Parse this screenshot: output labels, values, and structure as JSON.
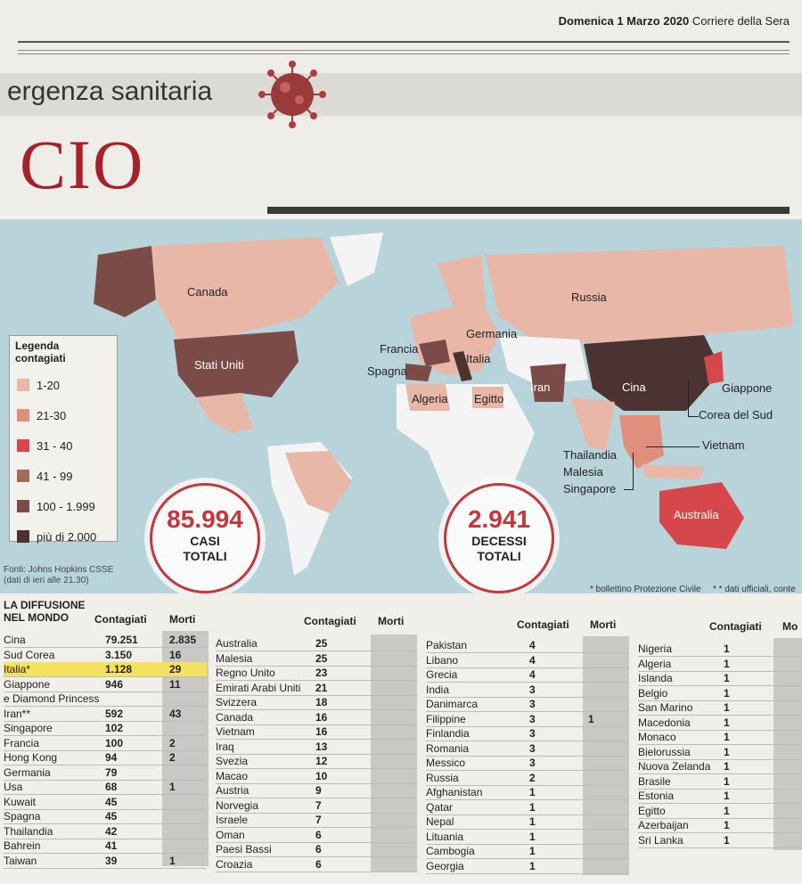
{
  "header": {
    "date": "Domenica 1 Marzo 2020",
    "paper": "Corriere della Sera",
    "section": "ergenza sanitaria",
    "big_title": "CIO"
  },
  "map": {
    "legend_title": "Legenda contagiati",
    "legend": [
      {
        "label": "1-20",
        "color": "#e9b7a8"
      },
      {
        "label": "21-30",
        "color": "#e08f7c"
      },
      {
        "label": "31 - 40",
        "color": "#d6474b"
      },
      {
        "label": "41 - 99",
        "color": "#a46a5c"
      },
      {
        "label": "100 - 1.999",
        "color": "#7a4b47"
      },
      {
        "label": "più di 2.000",
        "color": "#4a3330"
      }
    ],
    "labels": {
      "canada": "Canada",
      "stati_uniti": "Stati Uniti",
      "russia": "Russia",
      "francia": "Francia",
      "germania": "Germania",
      "spagna": "Spagna",
      "italia": "Italia",
      "algeria": "Algeria",
      "egitto": "Egitto",
      "iran": "Iran",
      "cina": "Cina",
      "giappone": "Giappone",
      "corea_del_sud": "Corea del Sud",
      "vietnam": "Vietnam",
      "thailandia": "Thailandia",
      "malesia": "Malesia",
      "singapore": "Singapore",
      "australia": "Australia"
    },
    "cases_total": "85.994",
    "cases_label_1": "CASI",
    "cases_label_2": "TOTALI",
    "deaths_total": "2.941",
    "deaths_label_1": "DECESSI",
    "deaths_label_2": "TOTALI",
    "source_1": "Fonti: Johns Hopkins CSSE",
    "source_2": "(dati di ieri alle 21.30)",
    "note_1": "* bollettino Protezione Civile",
    "note_2": "* * dati ufficiali, conte"
  },
  "table": {
    "title_1": "LA DIFFUSIONE",
    "title_2": "NEL MONDO",
    "col_cases": "Contagiati",
    "col_deaths": "Morti",
    "col_deaths_cut": "Mo",
    "col1": [
      {
        "name": "Cina",
        "cases": "79.251",
        "deaths": "2.835"
      },
      {
        "name": "Sud Corea",
        "cases": "3.150",
        "deaths": "16"
      },
      {
        "name": "Italia*",
        "cases": "1.128",
        "deaths": "29"
      },
      {
        "name": "Giappone",
        "cases": "946",
        "deaths": "11"
      },
      {
        "name": "e Diamond Princess",
        "cases": "",
        "deaths": ""
      },
      {
        "name": "Iran**",
        "cases": "592",
        "deaths": "43"
      },
      {
        "name": "Singapore",
        "cases": "102",
        "deaths": ""
      },
      {
        "name": "Francia",
        "cases": "100",
        "deaths": "2"
      },
      {
        "name": "Hong Kong",
        "cases": "94",
        "deaths": "2"
      },
      {
        "name": "Germania",
        "cases": "79",
        "deaths": ""
      },
      {
        "name": "Usa",
        "cases": "68",
        "deaths": "1"
      },
      {
        "name": "Kuwait",
        "cases": "45",
        "deaths": ""
      },
      {
        "name": "Spagna",
        "cases": "45",
        "deaths": ""
      },
      {
        "name": "Thailandia",
        "cases": "42",
        "deaths": ""
      },
      {
        "name": "Bahrein",
        "cases": "41",
        "deaths": ""
      },
      {
        "name": "Taiwan",
        "cases": "39",
        "deaths": "1"
      }
    ],
    "col2": [
      {
        "name": "Australia",
        "cases": "25"
      },
      {
        "name": "Malesia",
        "cases": "25"
      },
      {
        "name": "Regno Unito",
        "cases": "23"
      },
      {
        "name": "Emirati Arabi Uniti",
        "cases": "21"
      },
      {
        "name": "Svizzera",
        "cases": "18"
      },
      {
        "name": "Canada",
        "cases": "16"
      },
      {
        "name": "Vietnam",
        "cases": "16"
      },
      {
        "name": "Iraq",
        "cases": "13"
      },
      {
        "name": "Svezia",
        "cases": "12"
      },
      {
        "name": "Macao",
        "cases": "10"
      },
      {
        "name": "Austria",
        "cases": "9"
      },
      {
        "name": "Norvegia",
        "cases": "7"
      },
      {
        "name": "Israele",
        "cases": "7"
      },
      {
        "name": "Oman",
        "cases": "6"
      },
      {
        "name": "Paesi Bassi",
        "cases": "6"
      },
      {
        "name": "Croazia",
        "cases": "6"
      }
    ],
    "col3": [
      {
        "name": "Pakistan",
        "cases": "4",
        "deaths": ""
      },
      {
        "name": "Libano",
        "cases": "4",
        "deaths": ""
      },
      {
        "name": "Grecia",
        "cases": "4",
        "deaths": ""
      },
      {
        "name": "India",
        "cases": "3",
        "deaths": ""
      },
      {
        "name": "Danimarca",
        "cases": "3",
        "deaths": ""
      },
      {
        "name": "Filippine",
        "cases": "3",
        "deaths": "1"
      },
      {
        "name": "Finlandia",
        "cases": "3",
        "deaths": ""
      },
      {
        "name": "Romania",
        "cases": "3",
        "deaths": ""
      },
      {
        "name": "Messico",
        "cases": "3",
        "deaths": ""
      },
      {
        "name": "Russia",
        "cases": "2",
        "deaths": ""
      },
      {
        "name": "Afghanistan",
        "cases": "1",
        "deaths": ""
      },
      {
        "name": "Qatar",
        "cases": "1",
        "deaths": ""
      },
      {
        "name": "Nepal",
        "cases": "1",
        "deaths": ""
      },
      {
        "name": "Lituania",
        "cases": "1",
        "deaths": ""
      },
      {
        "name": "Cambogia",
        "cases": "1",
        "deaths": ""
      },
      {
        "name": "Georgia",
        "cases": "1",
        "deaths": ""
      }
    ],
    "col4": [
      {
        "name": "Nigeria",
        "cases": "1"
      },
      {
        "name": "Algeria",
        "cases": "1"
      },
      {
        "name": "Islanda",
        "cases": "1"
      },
      {
        "name": "Belgio",
        "cases": "1"
      },
      {
        "name": "San Marino",
        "cases": "1"
      },
      {
        "name": "Macedonia",
        "cases": "1"
      },
      {
        "name": "Monaco",
        "cases": "1"
      },
      {
        "name": "Bielorussia",
        "cases": "1"
      },
      {
        "name": "Nuova Zelanda",
        "cases": "1"
      },
      {
        "name": "Brasile",
        "cases": "1"
      },
      {
        "name": "Estonia",
        "cases": "1"
      },
      {
        "name": "Egitto",
        "cases": "1"
      },
      {
        "name": "Azerbaijan",
        "cases": "1"
      },
      {
        "name": "Sri Lanka",
        "cases": "1"
      }
    ]
  }
}
